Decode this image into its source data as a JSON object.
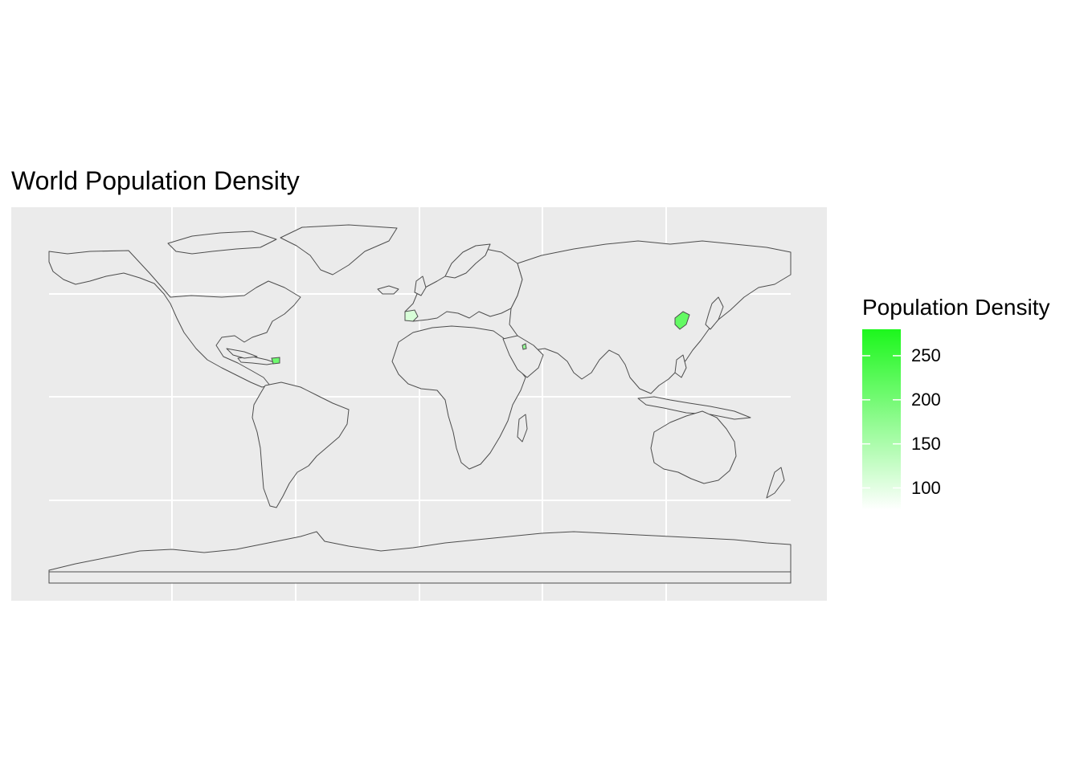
{
  "title": "World Population Density",
  "legend": {
    "title": "Population Density",
    "ticks": [
      "250",
      "200",
      "150",
      "100"
    ],
    "low_color": "#ffffff",
    "high_color": "#1cf71c",
    "value_min": 75,
    "value_max": 280
  },
  "colors": {
    "panel_background": "#ebebeb",
    "gridline": "#ffffff",
    "country_border": "#4d4d4d",
    "country_fill": "#ebebeb"
  },
  "highlighted_regions": [
    {
      "name": "North Korea",
      "density": 215
    },
    {
      "name": "Haiti",
      "density": 205
    },
    {
      "name": "Qatar",
      "density": 170
    },
    {
      "name": "Portugal",
      "density": 110
    }
  ]
}
